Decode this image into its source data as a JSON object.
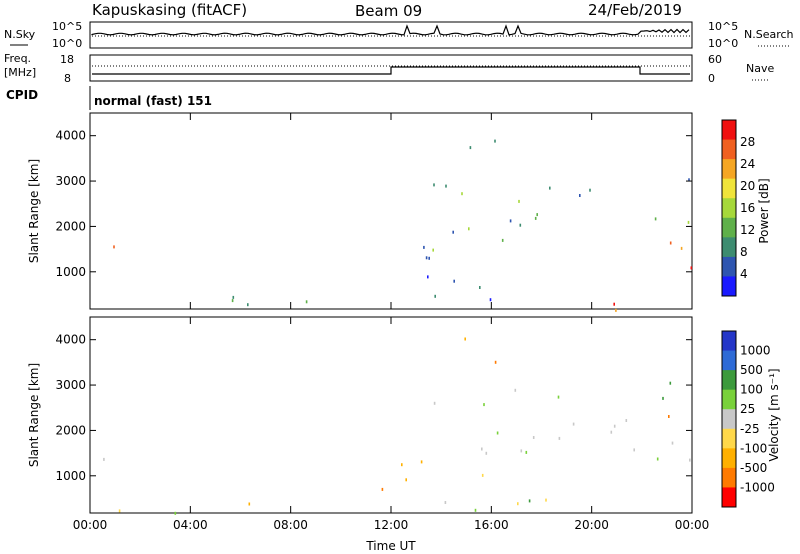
{
  "header": {
    "station": "Kapuskasing (fitACF)",
    "beam": "Beam 09",
    "date": "24/Feb/2019"
  },
  "params": {
    "nsky_label": "N.Sky",
    "nsky_ticks": [
      "10^5",
      "10^0"
    ],
    "nsearch_label": "N.Search",
    "nsearch_ticks": [
      "10^5",
      "10^0"
    ],
    "freq_label": "Freq.",
    "freq_unit": "[MHz]",
    "freq_ticks": [
      "18",
      "8"
    ],
    "nave_label": "Nave",
    "nave_ticks": [
      "60",
      "0"
    ],
    "cpid_label": "CPID",
    "cpid_value": "normal (fast) 151"
  },
  "colors": {
    "power_scale": [
      "#1a1aff",
      "#2e55b0",
      "#3d8c70",
      "#5fb04a",
      "#a6d83a",
      "#f0e43a",
      "#f5a623",
      "#f06020",
      "#f01010"
    ],
    "velocity_scale": [
      "#ff0000",
      "#ff7a00",
      "#ffb000",
      "#ffd84a",
      "#c8c8c8",
      "#79d13a",
      "#3c9a3c",
      "#2e6bd6",
      "#2436c8"
    ]
  },
  "chart_data": [
    {
      "type": "heatmap",
      "name": "power",
      "xlabel": "",
      "ylabel": "Slant Range [km]",
      "x_ticks": [
        "00:00",
        "04:00",
        "08:00",
        "12:00",
        "16:00",
        "20:00",
        "00:00"
      ],
      "xlim_hours": [
        0,
        24
      ],
      "y_ticks": [
        "1000",
        "2000",
        "3000",
        "4000"
      ],
      "ylim": [
        180,
        4500
      ],
      "colorbar_label": "Power [dB]",
      "colorbar_ticks": [
        "4",
        "8",
        "12",
        "16",
        "20",
        "24",
        "28"
      ],
      "regions": [
        {
          "t": [
            0.0,
            1.0
          ],
          "r": [
            900,
            1600
          ],
          "level": "high"
        },
        {
          "t": [
            0.0,
            22.0
          ],
          "r": [
            180,
            500
          ],
          "level": "mixed"
        },
        {
          "t": [
            11.3,
            16.0
          ],
          "r": [
            600,
            1500
          ],
          "level": "low"
        },
        {
          "t": [
            12.5,
            21.8
          ],
          "r": [
            1500,
            3000
          ],
          "level": "mid"
        },
        {
          "t": [
            14.5,
            16.2
          ],
          "r": [
            3500,
            4400
          ],
          "level": "mid"
        },
        {
          "t": [
            21.8,
            24.0
          ],
          "r": [
            700,
            1800
          ],
          "level": "high"
        },
        {
          "t": [
            21.8,
            24.0
          ],
          "r": [
            2000,
            3300
          ],
          "level": "mid"
        }
      ]
    },
    {
      "type": "heatmap",
      "name": "velocity",
      "xlabel": "Time UT",
      "ylabel": "Slant Range [km]",
      "x_ticks": [
        "00:00",
        "04:00",
        "08:00",
        "12:00",
        "16:00",
        "20:00",
        "00:00"
      ],
      "xlim_hours": [
        0,
        24
      ],
      "y_ticks": [
        "1000",
        "2000",
        "3000",
        "4000"
      ],
      "ylim": [
        180,
        4500
      ],
      "colorbar_label": "Velocity [m s⁻¹]",
      "colorbar_ticks": [
        "1000",
        "500",
        "100",
        "25",
        "-25",
        "-100",
        "-500",
        "-1000"
      ],
      "regions": [
        {
          "t": [
            0.0,
            1.0
          ],
          "r": [
            900,
            1700
          ],
          "level": "mixed"
        },
        {
          "t": [
            0.0,
            22.0
          ],
          "r": [
            180,
            500
          ],
          "level": "low-neg"
        },
        {
          "t": [
            11.3,
            16.0
          ],
          "r": [
            600,
            1500
          ],
          "level": "neg"
        },
        {
          "t": [
            12.5,
            21.8
          ],
          "r": [
            1500,
            3000
          ],
          "level": "zero"
        },
        {
          "t": [
            14.5,
            16.2
          ],
          "r": [
            3500,
            4400
          ],
          "level": "neg"
        },
        {
          "t": [
            21.8,
            24.0
          ],
          "r": [
            700,
            1800
          ],
          "level": "zero"
        },
        {
          "t": [
            21.8,
            24.0
          ],
          "r": [
            2000,
            3300
          ],
          "level": "pos"
        }
      ]
    }
  ]
}
